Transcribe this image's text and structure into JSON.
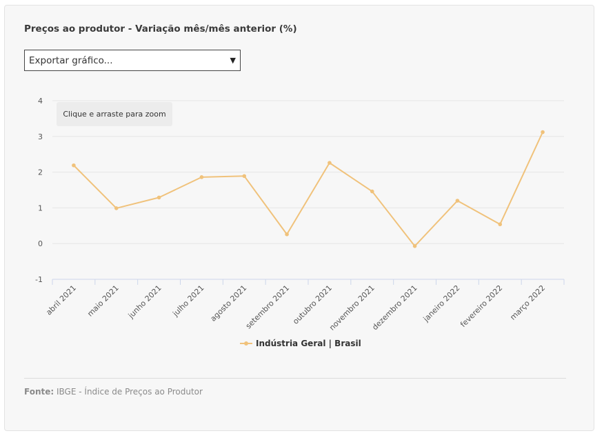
{
  "title": "Preços ao produtor - Variação mês/mês anterior (%)",
  "export": {
    "selected": "Exportar gráfico..."
  },
  "zoom_hint": "Clique e arraste para zoom",
  "source": {
    "label": "Fonte:",
    "text": "IBGE - Índice de Preços ao Produtor"
  },
  "colors": {
    "series": "#f0c27b",
    "grid": "#e6e6e6",
    "axis": "#ccd6eb"
  },
  "chart_data": {
    "type": "line",
    "categories": [
      "abril 2021",
      "maio 2021",
      "junho 2021",
      "julho 2021",
      "agosto 2021",
      "setembro 2021",
      "outubro 2021",
      "novembro 2021",
      "dezembro 2021",
      "janeiro 2022",
      "fevereiro 2022",
      "março 2022"
    ],
    "series": [
      {
        "name": "Indústria Geral | Brasil",
        "values": [
          2.19,
          0.99,
          1.29,
          1.86,
          1.89,
          0.26,
          2.26,
          1.46,
          -0.07,
          1.2,
          0.54,
          3.12
        ]
      }
    ],
    "yticks": [
      -1,
      0,
      1,
      2,
      3,
      4
    ],
    "ylim": [
      -1,
      4
    ],
    "grid": true,
    "legend": "bottom-center"
  }
}
